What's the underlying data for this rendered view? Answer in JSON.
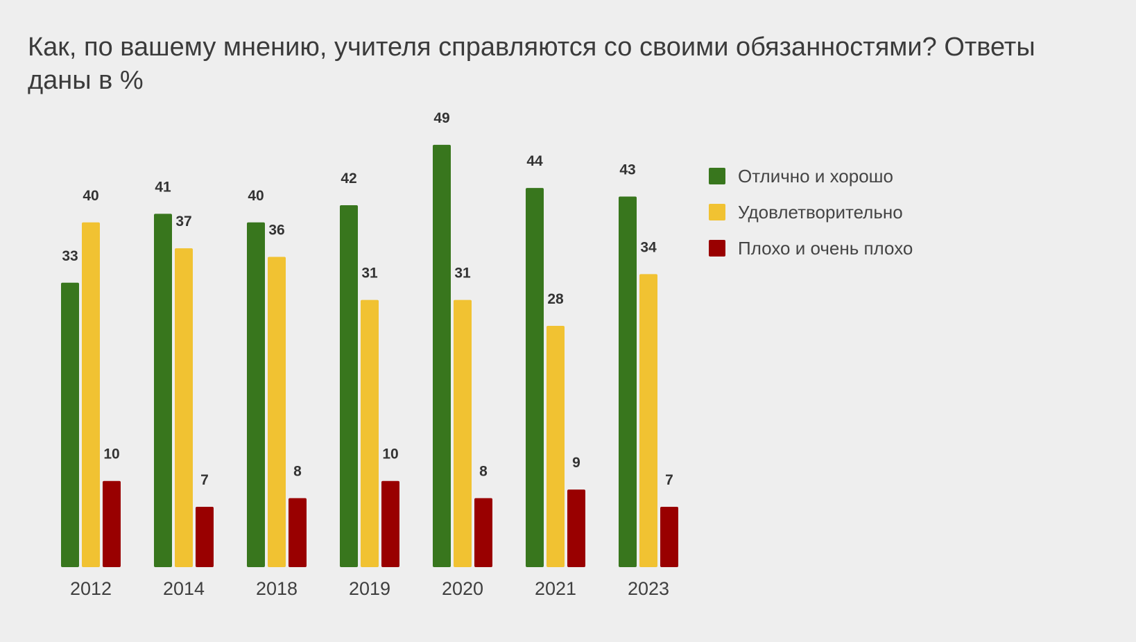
{
  "chart_data": {
    "type": "bar",
    "title": "Как, по вашему мнению, учителя справляются со своими обязанностями? Ответы даны в %",
    "xlabel": "",
    "ylabel": "",
    "categories": [
      "2012",
      "2014",
      "2018",
      "2019",
      "2020",
      "2021",
      "2023"
    ],
    "series": [
      {
        "name": "Отлично и хорошо",
        "color": "#38761d",
        "values": [
          33,
          41,
          40,
          42,
          49,
          44,
          43
        ]
      },
      {
        "name": "Удовлетворительно",
        "color": "#f1c232",
        "values": [
          40,
          37,
          36,
          31,
          31,
          28,
          34
        ]
      },
      {
        "name": "Плохо и очень плохо",
        "color": "#990000",
        "values": [
          10,
          7,
          8,
          10,
          8,
          9,
          7
        ]
      }
    ],
    "ylim": [
      0,
      50
    ],
    "grid": false,
    "legend_position": "right",
    "data_labels": true
  }
}
